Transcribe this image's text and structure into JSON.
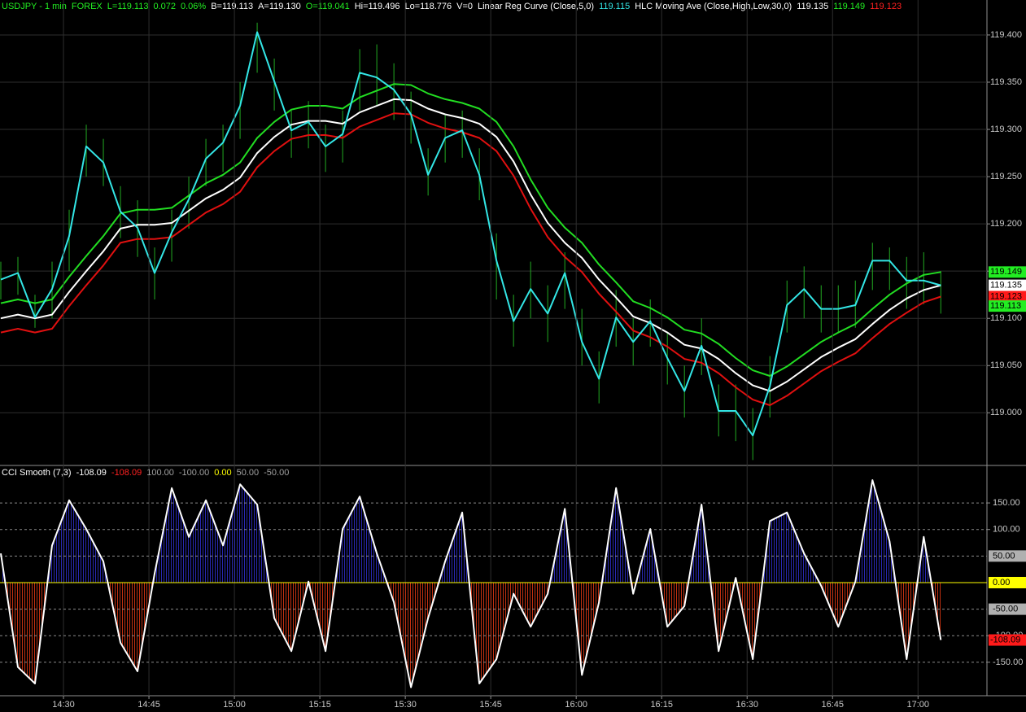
{
  "chart_data": [
    {
      "type": "price",
      "legend": [
        {
          "text": "USDJPY - 1 min",
          "color": "#22ee22"
        },
        {
          "text": "FOREX",
          "color": "#22ee22"
        },
        {
          "text": "L=119.113",
          "color": "#22ee22"
        },
        {
          "text": "0.072",
          "color": "#22ee22"
        },
        {
          "text": "0.06%",
          "color": "#22ee22"
        },
        {
          "text": "B=119.113",
          "color": "#ffffff"
        },
        {
          "text": "A=119.130",
          "color": "#ffffff"
        },
        {
          "text": "O=119.041",
          "color": "#22ee22"
        },
        {
          "text": "Hi=119.496",
          "color": "#ffffff"
        },
        {
          "text": "Lo=118.776",
          "color": "#ffffff"
        },
        {
          "text": "V=0",
          "color": "#ffffff"
        },
        {
          "text": "Linear Reg Curve (Close,5,0)",
          "color": "#ffffff"
        },
        {
          "text": "119.115",
          "color": "#33e6e6"
        },
        {
          "text": "HLC Moving Ave (Close,High,Low,30,0)",
          "color": "#ffffff"
        },
        {
          "text": "119.135",
          "color": "#ffffff"
        },
        {
          "text": "119.149",
          "color": "#22ee22"
        },
        {
          "text": "119.123",
          "color": "#ff2020"
        }
      ],
      "xlim": [
        0,
        57.7
      ],
      "ylim": [
        118.946,
        119.437
      ],
      "yticks": [
        {
          "value": 119.0,
          "label": "119.000"
        },
        {
          "value": 119.05,
          "label": "119.050"
        },
        {
          "value": 119.1,
          "label": "119.100"
        },
        {
          "value": 119.15,
          "label": "119.150"
        },
        {
          "value": 119.2,
          "label": "119.200"
        },
        {
          "value": 119.25,
          "label": "119.250"
        },
        {
          "value": 119.3,
          "label": "119.300"
        },
        {
          "value": 119.35,
          "label": "119.350"
        },
        {
          "value": 119.4,
          "label": "119.400"
        }
      ],
      "bar_color": "#22aa22",
      "high": [
        119.16,
        119.165,
        119.125,
        119.16,
        119.215,
        119.305,
        119.29,
        119.24,
        119.225,
        119.175,
        119.215,
        119.25,
        119.29,
        119.305,
        119.35,
        119.413,
        119.375,
        119.32,
        119.33,
        119.305,
        119.32,
        119.385,
        119.39,
        119.37,
        119.34,
        119.28,
        119.315,
        119.32,
        119.28,
        119.19,
        119.125,
        119.16,
        119.135,
        119.17,
        119.11,
        119.065,
        119.13,
        119.1,
        119.12,
        119.085,
        119.05,
        119.1,
        119.03,
        119.03,
        119.005,
        119.06,
        119.14,
        119.155,
        119.135,
        119.135,
        119.14,
        119.18,
        119.175,
        119.165,
        119.17,
        119.15
      ],
      "low": [
        119.12,
        119.125,
        119.09,
        119.1,
        119.15,
        119.25,
        119.24,
        119.185,
        119.165,
        119.12,
        119.16,
        119.195,
        119.24,
        119.255,
        119.29,
        119.36,
        119.32,
        119.27,
        119.28,
        119.255,
        119.265,
        119.32,
        119.325,
        119.31,
        119.285,
        119.23,
        119.265,
        119.27,
        119.225,
        119.12,
        119.07,
        119.1,
        119.075,
        119.11,
        119.05,
        119.01,
        119.07,
        119.05,
        119.07,
        119.03,
        118.995,
        119.04,
        118.975,
        118.97,
        118.95,
        118.995,
        119.085,
        119.1,
        119.085,
        119.085,
        119.09,
        119.13,
        119.13,
        119.11,
        119.115,
        119.105
      ],
      "series": [
        {
          "color": "#22dd22",
          "values": [
            119.116,
            119.12,
            119.116,
            119.12,
            119.144,
            119.166,
            119.187,
            119.211,
            119.215,
            119.215,
            119.217,
            119.23,
            119.243,
            119.252,
            119.265,
            119.291,
            119.308,
            119.321,
            119.325,
            119.325,
            119.322,
            119.334,
            119.341,
            119.348,
            119.347,
            119.338,
            119.332,
            119.328,
            119.322,
            119.308,
            119.282,
            119.247,
            119.217,
            119.196,
            119.18,
            119.157,
            119.138,
            119.118,
            119.111,
            119.101,
            119.088,
            119.084,
            119.073,
            119.058,
            119.045,
            119.039,
            119.049,
            119.062,
            119.075,
            119.085,
            119.094,
            119.11,
            119.125,
            119.137,
            119.146,
            119.149
          ]
        },
        {
          "color": "#ffffff",
          "values": [
            119.1,
            119.104,
            119.1,
            119.104,
            119.128,
            119.15,
            119.171,
            119.195,
            119.199,
            119.199,
            119.201,
            119.214,
            119.227,
            119.236,
            119.249,
            119.275,
            119.292,
            119.305,
            119.309,
            119.309,
            119.306,
            119.318,
            119.325,
            119.332,
            119.331,
            119.322,
            119.316,
            119.312,
            119.306,
            119.292,
            119.266,
            119.231,
            119.201,
            119.18,
            119.164,
            119.141,
            119.122,
            119.102,
            119.095,
            119.085,
            119.072,
            119.068,
            119.057,
            119.042,
            119.029,
            119.023,
            119.033,
            119.046,
            119.059,
            119.069,
            119.078,
            119.094,
            119.109,
            119.121,
            119.13,
            119.135
          ]
        },
        {
          "color": "#e01010",
          "values": [
            119.085,
            119.089,
            119.085,
            119.089,
            119.113,
            119.135,
            119.156,
            119.18,
            119.184,
            119.184,
            119.186,
            119.199,
            119.212,
            119.221,
            119.234,
            119.26,
            119.277,
            119.29,
            119.294,
            119.294,
            119.291,
            119.303,
            119.31,
            119.317,
            119.316,
            119.307,
            119.301,
            119.297,
            119.291,
            119.277,
            119.251,
            119.216,
            119.186,
            119.165,
            119.149,
            119.126,
            119.107,
            119.087,
            119.08,
            119.07,
            119.057,
            119.053,
            119.042,
            119.027,
            119.014,
            119.008,
            119.018,
            119.031,
            119.044,
            119.054,
            119.063,
            119.079,
            119.094,
            119.106,
            119.117,
            119.123
          ]
        },
        {
          "color": "#33e6e6",
          "values": [
            119.141,
            119.148,
            119.101,
            119.131,
            119.187,
            119.282,
            119.265,
            119.213,
            119.196,
            119.148,
            119.191,
            119.226,
            119.269,
            119.286,
            119.325,
            119.403,
            119.351,
            119.299,
            119.308,
            119.282,
            119.295,
            119.36,
            119.355,
            119.342,
            119.316,
            119.252,
            119.291,
            119.299,
            119.252,
            119.161,
            119.097,
            119.131,
            119.105,
            119.148,
            119.075,
            119.036,
            119.101,
            119.075,
            119.097,
            119.058,
            119.023,
            119.071,
            119.002,
            119.002,
            118.976,
            119.028,
            119.114,
            119.131,
            119.11,
            119.11,
            119.114,
            119.161,
            119.161,
            119.14,
            119.14,
            119.135
          ]
        }
      ],
      "flags": [
        {
          "value": 119.149,
          "color": "#22ee22"
        },
        {
          "value": 119.135,
          "color": "#ffffff"
        },
        {
          "value": 119.123,
          "color": "#ff1a1a"
        },
        {
          "value": 119.113,
          "color": "#22ee22"
        }
      ]
    },
    {
      "type": "cci",
      "legend": [
        {
          "text": "CCI Smooth (7,3)",
          "color": "#ffffff"
        },
        {
          "text": "-108.09",
          "color": "#ffffff"
        },
        {
          "text": "-108.09",
          "color": "#ff2020"
        },
        {
          "text": "100.00",
          "color": "#a0a0a0"
        },
        {
          "text": "-100.00",
          "color": "#a0a0a0"
        },
        {
          "text": "0.00",
          "color": "#ffff00"
        },
        {
          "text": "50.00",
          "color": "#a0a0a0"
        },
        {
          "text": "-50.00",
          "color": "#a0a0a0"
        }
      ],
      "xlim": [
        0,
        57.7
      ],
      "xticks": [
        {
          "value": 3.667,
          "label": "14:30"
        },
        {
          "value": 8.667,
          "label": "14:45"
        },
        {
          "value": 13.667,
          "label": "15:00"
        },
        {
          "value": 18.667,
          "label": "15:15"
        },
        {
          "value": 23.667,
          "label": "15:30"
        },
        {
          "value": 28.667,
          "label": "15:45"
        },
        {
          "value": 33.667,
          "label": "16:00"
        },
        {
          "value": 38.667,
          "label": "16:15"
        },
        {
          "value": 43.667,
          "label": "16:30"
        },
        {
          "value": 48.667,
          "label": "16:45"
        },
        {
          "value": 53.667,
          "label": "17:00"
        }
      ],
      "ylim": [
        -213,
        216
      ],
      "yticks": [
        {
          "value": 150,
          "label": "150.00"
        },
        {
          "value": 100,
          "label": "100.00"
        },
        {
          "value": -100,
          "label": "-100.00"
        },
        {
          "value": -150,
          "label": "-150.00"
        }
      ],
      "levels": [
        {
          "value": 50,
          "label": "50.00",
          "color": "#b0b0b0"
        },
        {
          "value": 0,
          "label": "0.00",
          "color": "#ffff00"
        },
        {
          "value": -50,
          "label": "-50.00",
          "color": "#b0b0b0"
        }
      ],
      "line_color": "#ffffff",
      "fill_up": "#2020a0",
      "fill_down": "#b02a10",
      "values": [
        55,
        -159,
        -190,
        70,
        155,
        101,
        40,
        -113,
        -167,
        17,
        178,
        86,
        155,
        70,
        185,
        147,
        -67,
        -129,
        2,
        -129,
        101,
        162,
        55,
        -37,
        -197,
        -67,
        40,
        132,
        -190,
        -144,
        -21,
        -83,
        -21,
        139,
        -174,
        -37,
        178,
        -21,
        101,
        -83,
        -44,
        147,
        -129,
        9,
        -144,
        116,
        132,
        55,
        -6,
        -83,
        2,
        193,
        78,
        -144,
        86,
        -108.09
      ],
      "flags": [
        {
          "value": -108.09,
          "color": "#ff1a1a"
        }
      ]
    }
  ]
}
